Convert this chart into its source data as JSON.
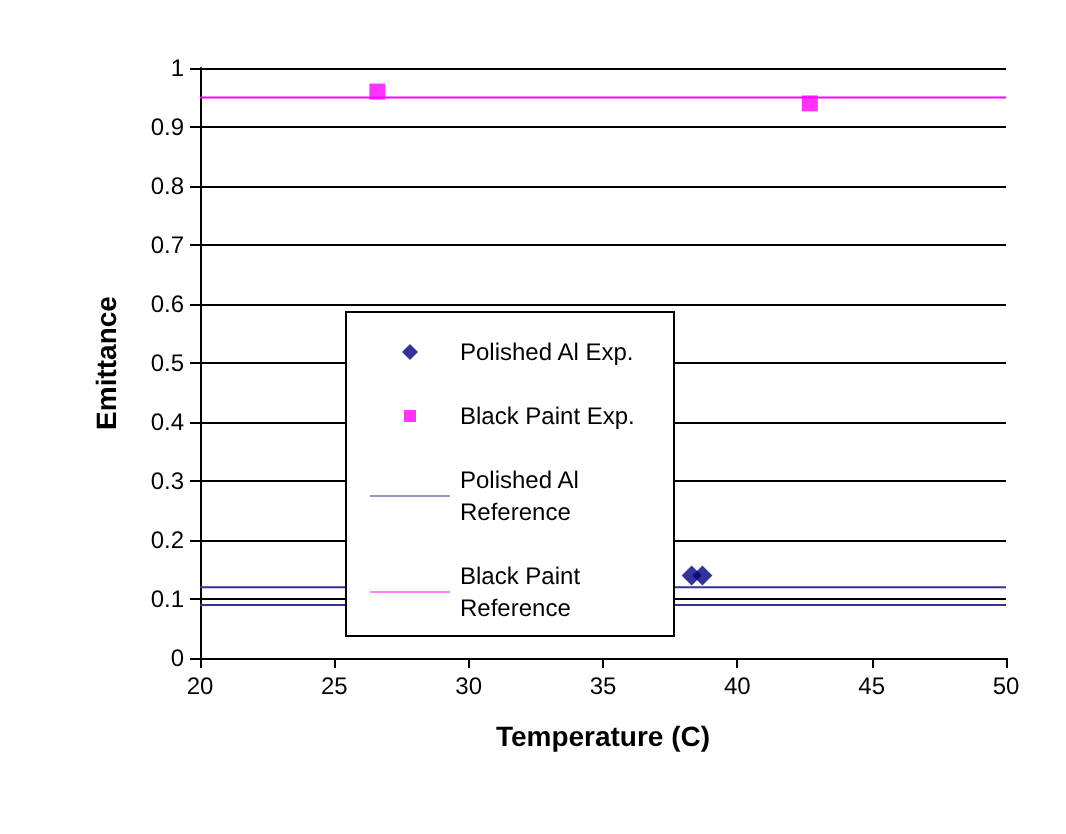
{
  "chart_data": {
    "type": "scatter",
    "xlabel": "Temperature (C)",
    "ylabel": "Emittance",
    "xlim": [
      20,
      50
    ],
    "xticks": [
      20,
      25,
      30,
      35,
      40,
      45,
      50
    ],
    "ylim": [
      0,
      1
    ],
    "yticks": [
      0,
      0.1,
      0.2,
      0.3,
      0.4,
      0.5,
      0.6,
      0.7,
      0.8,
      0.9,
      1
    ],
    "grid": "y",
    "legend": "center left",
    "series": [
      {
        "name": "Polished Al Exp.",
        "marker": "diamond",
        "color": "#000080",
        "x": [
          38.3,
          38.7
        ],
        "values": [
          0.14,
          0.14
        ]
      },
      {
        "name": "Black Paint Exp.",
        "marker": "square",
        "color": "#ff00ff",
        "x": [
          26.6,
          42.7
        ],
        "values": [
          0.96,
          0.94
        ]
      },
      {
        "name": "Polished Al Reference",
        "type": "line",
        "marker": "none",
        "color": "#333399",
        "x": [
          20,
          50
        ],
        "values": [
          0.12,
          0.12
        ]
      },
      {
        "type": "line",
        "marker": "none",
        "color": "#333399",
        "x": [
          20,
          50
        ],
        "values": [
          0.09,
          0.09
        ]
      },
      {
        "name": "Black Paint Reference",
        "type": "line",
        "marker": "none",
        "color": "#ff00ff",
        "x": [
          20,
          50
        ],
        "values": [
          0.95,
          0.95
        ]
      }
    ]
  }
}
